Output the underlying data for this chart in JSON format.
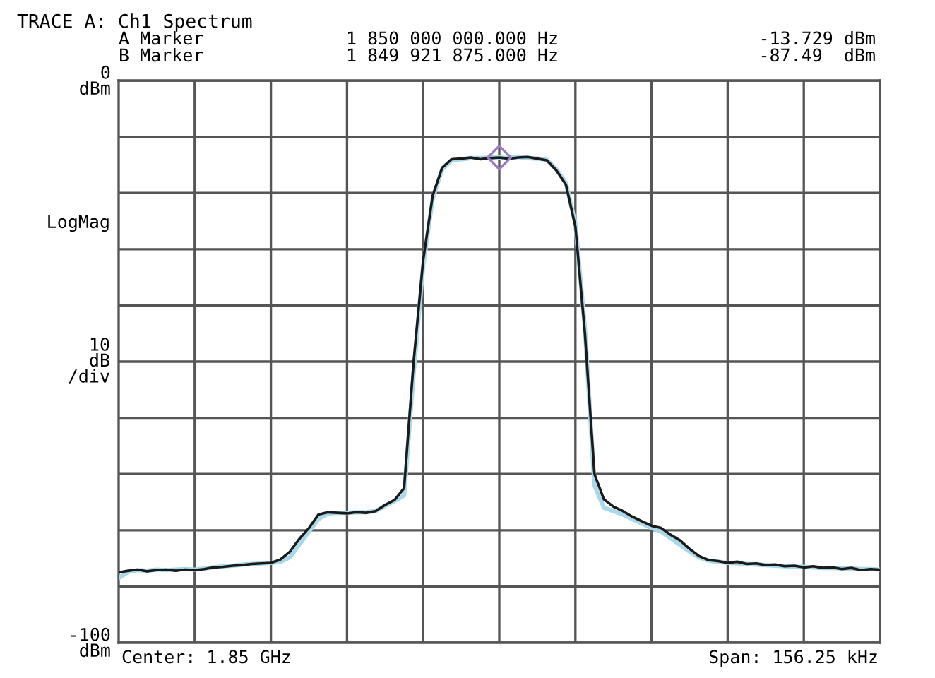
{
  "chart_data": {
    "type": "line",
    "title": "TRACE A: Ch1 Spectrum",
    "categories": [
      null,
      null,
      null,
      null,
      null,
      null,
      null,
      null,
      null,
      null,
      null,
      null,
      null,
      null,
      null,
      null,
      null,
      null,
      null,
      null,
      null,
      null,
      null,
      null,
      null,
      null,
      null,
      null,
      null,
      null,
      null,
      null,
      null,
      null,
      null,
      null,
      null,
      null,
      null,
      null,
      null,
      null,
      null,
      null,
      null,
      null,
      null,
      null,
      null,
      null,
      null,
      null,
      null,
      null,
      null,
      null,
      null,
      null,
      null,
      null,
      null,
      null,
      null,
      null,
      null,
      null,
      null,
      null,
      null,
      null,
      null,
      null,
      null,
      null,
      null,
      null,
      null,
      null,
      null,
      null,
      null
    ],
    "series": [
      {
        "color": "#a8d8ea",
        "values": [
          -88.5,
          -87.4,
          -87.1,
          -87.2,
          -87.0,
          -87.1,
          -87.0,
          -86.9,
          -87.0,
          -86.8,
          -86.6,
          -86.4,
          -86.3,
          -86.1,
          -86.0,
          -85.9,
          -85.8,
          -85.6,
          -84.8,
          -82.5,
          -80.2,
          -78.0,
          -77.0,
          -76.9,
          -76.9,
          -76.8,
          -76.8,
          -76.6,
          -75.6,
          -74.8,
          -73.8,
          -52,
          -33,
          -21,
          -15.8,
          -14.2,
          -14.0,
          -13.8,
          -13.8,
          -13.7,
          -13.7,
          -13.8,
          -13.6,
          -13.8,
          -13.9,
          -14.1,
          -15.8,
          -18.2,
          -25.5,
          -44,
          -72,
          -76.0,
          -76.6,
          -77.2,
          -78.0,
          -78.8,
          -79.6,
          -80.2,
          -81.4,
          -82.6,
          -83.8,
          -84.8,
          -85.4,
          -85.6,
          -85.8,
          -85.9,
          -86.0,
          -86.1,
          -86.2,
          -86.3,
          -86.4,
          -86.5,
          -86.5,
          -86.6,
          -86.7,
          -86.7,
          -86.8,
          -86.8,
          -86.9,
          -86.9,
          -87.0
        ]
      },
      {
        "color": "#1a1a1a",
        "values": [
          -87.5,
          -87.2,
          -87.0,
          -87.3,
          -87.1,
          -87.0,
          -87.2,
          -87.0,
          -87.1,
          -86.9,
          -86.6,
          -86.5,
          -86.3,
          -86.2,
          -86.0,
          -85.9,
          -85.8,
          -85.2,
          -83.8,
          -81.5,
          -79.6,
          -77.2,
          -76.8,
          -76.9,
          -77.0,
          -76.8,
          -76.9,
          -76.6,
          -75.5,
          -74.6,
          -72.5,
          -50,
          -32,
          -20.5,
          -15.5,
          -14.0,
          -13.9,
          -13.7,
          -14.0,
          -13.8,
          -13.7,
          -13.9,
          -13.7,
          -13.6,
          -13.9,
          -14.2,
          -16.0,
          -18.5,
          -26,
          -45,
          -70,
          -74.5,
          -75.8,
          -76.6,
          -77.6,
          -78.4,
          -79.2,
          -79.6,
          -80.8,
          -81.8,
          -83.3,
          -84.6,
          -85.3,
          -85.5,
          -85.8,
          -85.6,
          -86.0,
          -85.9,
          -86.2,
          -86.1,
          -86.4,
          -86.3,
          -86.6,
          -86.4,
          -86.7,
          -86.6,
          -86.9,
          -86.7,
          -87.1,
          -86.9,
          -87.0
        ]
      },
      {
        "type": "scatter",
        "marker": "diamond",
        "color": "#9b7bc0",
        "values": [
          null,
          null,
          null,
          null,
          null,
          null,
          null,
          null,
          null,
          null,
          null,
          null,
          null,
          null,
          null,
          null,
          null,
          null,
          null,
          null,
          null,
          null,
          null,
          null,
          null,
          null,
          null,
          null,
          null,
          null,
          null,
          null,
          null,
          null,
          null,
          null,
          null,
          null,
          null,
          null,
          -13.7,
          null,
          null,
          null,
          null,
          null,
          null,
          null,
          null,
          null,
          null,
          null,
          null,
          null,
          null,
          null,
          null,
          null,
          null,
          null,
          null,
          null,
          null,
          null,
          null,
          null,
          null,
          null,
          null,
          null,
          null,
          null,
          null,
          null,
          null,
          null,
          null,
          null,
          null,
          null,
          null
        ]
      }
    ],
    "ylim": [
      -100,
      0
    ],
    "yticks": [
      {
        "value": 0,
        "label": "0\ndBm"
      },
      {
        "value": -10,
        "label": null
      },
      {
        "value": -20,
        "label": null
      },
      {
        "value": -30,
        "label": null
      },
      {
        "value": -40,
        "label": null
      },
      {
        "value": -50,
        "label": null
      },
      {
        "value": -60,
        "label": null
      },
      {
        "value": -70,
        "label": null
      },
      {
        "value": -80,
        "label": null
      },
      {
        "value": -90,
        "label": null
      },
      {
        "value": -100,
        "label": "-100\ndBm"
      }
    ],
    "grid": true,
    "ylabel": "10\ndB\n/div",
    "annotations": [
      "A Marker",
      "1 850 000 000.000 Hz",
      "-13.729 dBm",
      "B Marker",
      "1 849 921 875.000 Hz",
      "-87.49  dBm",
      "LogMag",
      "Center: 1.85 GHz",
      "Span: 156.25 kHz"
    ]
  }
}
